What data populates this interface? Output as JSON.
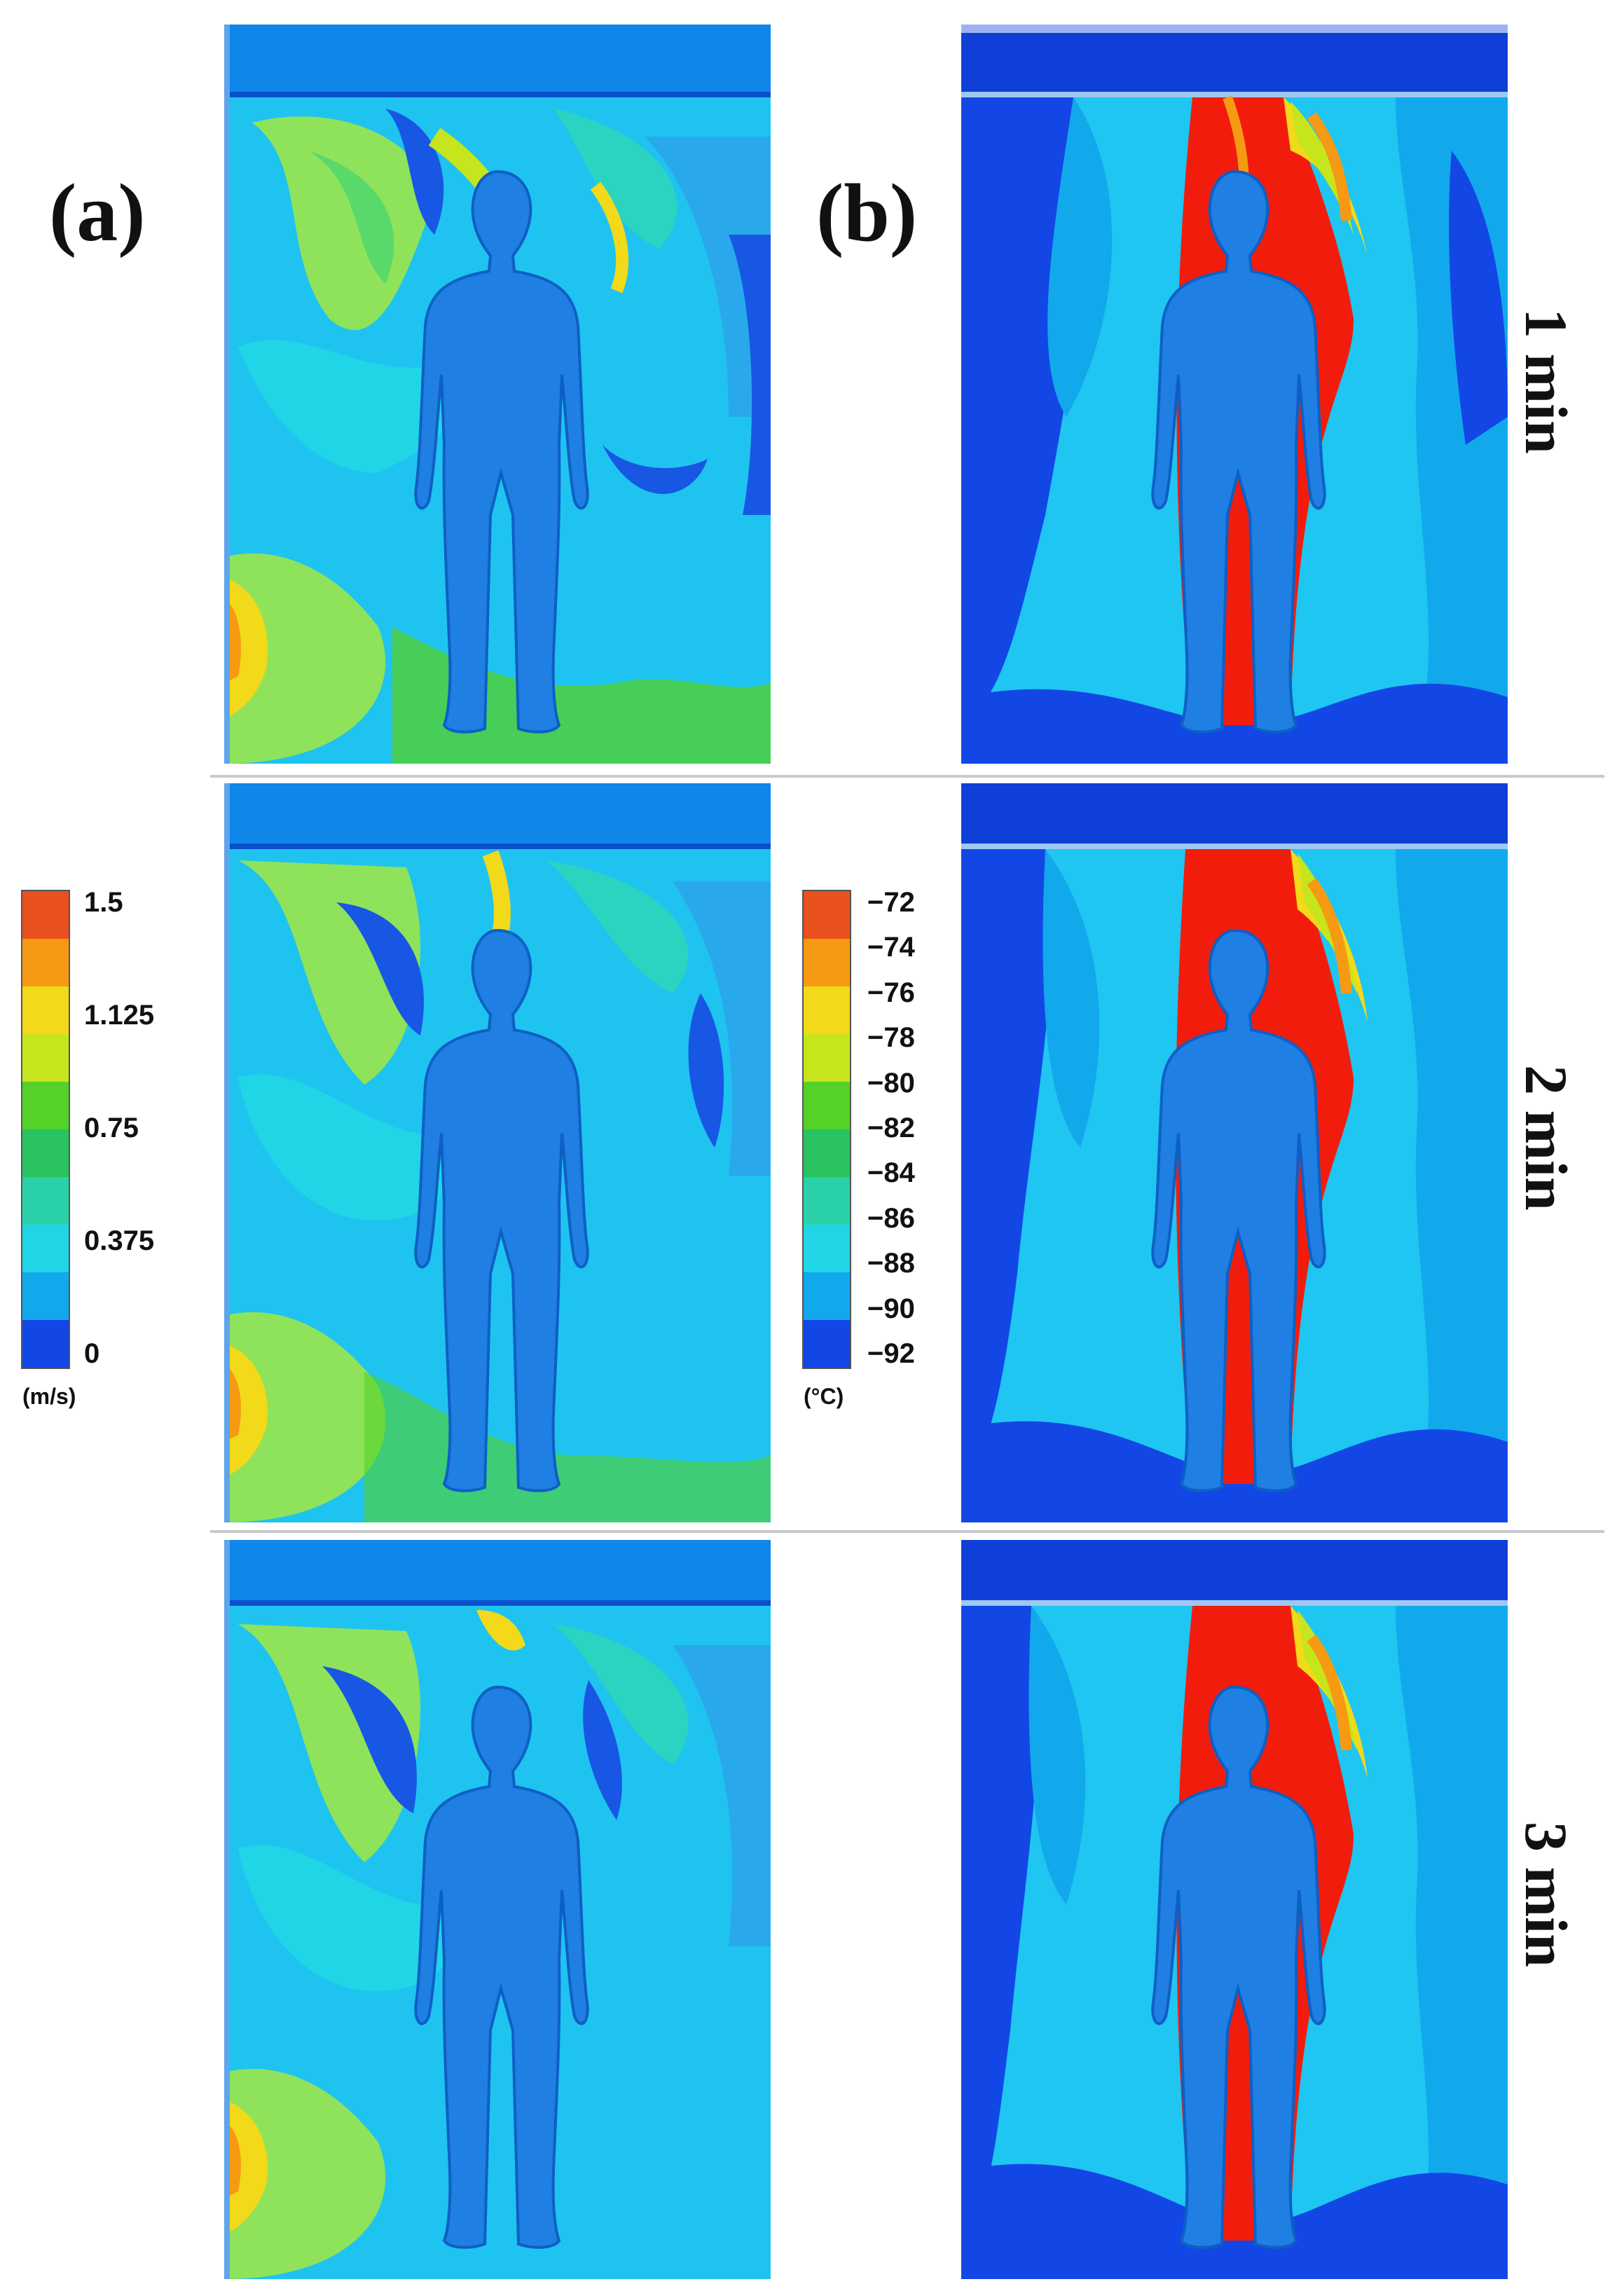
{
  "labels": {
    "a": "(a)",
    "b": "(b)"
  },
  "times": [
    "1 min",
    "2 min",
    "3 min"
  ],
  "velocity_legend": {
    "ticks": [
      "1.5",
      "1.125",
      "0.75",
      "0.375",
      "0"
    ],
    "unit": "(m/s)",
    "colors": [
      "#e8501c",
      "#f59a12",
      "#f2d91a",
      "#c6e51c",
      "#54d227",
      "#29c35f",
      "#2ad1a8",
      "#20d6e6",
      "#12a8ec",
      "#1247e6"
    ]
  },
  "temperature_legend": {
    "ticks": [
      "−72",
      "−74",
      "−76",
      "−78",
      "−80",
      "−82",
      "−84",
      "−86",
      "−88",
      "−90",
      "−92"
    ],
    "unit": "(°C)",
    "colors": [
      "#e8501c",
      "#f59a12",
      "#f2d91a",
      "#c6e51c",
      "#54d227",
      "#29c35f",
      "#2ad1a8",
      "#20d6e6",
      "#12a8ec",
      "#1247e6"
    ]
  },
  "colors": {
    "body": "#1f7fe2",
    "background_velocity": "#1fc3f0",
    "background_temperature": "#1ec6f1",
    "plume": "#f21c0c"
  }
}
